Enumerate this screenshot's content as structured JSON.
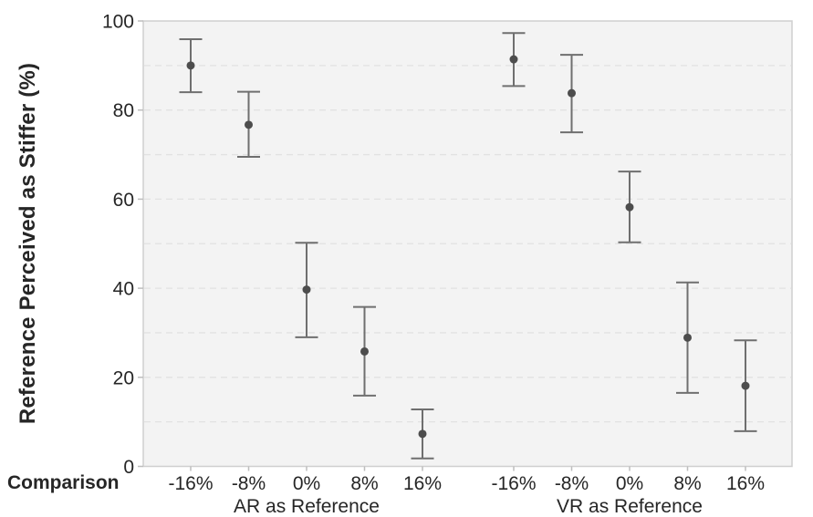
{
  "figure": {
    "colors": {
      "panel_background": "#f3f3f3",
      "panel_border": "#cfcfcf",
      "gridline": "#e2e2e2",
      "tick": "#bdbdbd",
      "error_bar": "#6f6f6f",
      "marker": "#4d4d4d",
      "text": "#262626"
    }
  },
  "chart_data": {
    "type": "scatter",
    "title": "",
    "ylabel": "Reference Perceived as Stiffer (%)",
    "xlabel": "Comparison",
    "ylim": [
      0,
      100
    ],
    "y_tick_labels": [
      0,
      20,
      40,
      60,
      80,
      100
    ],
    "gridline_step": 10,
    "grid": true,
    "legend_position": "none",
    "categories": [
      "-16%",
      "-8%",
      "0%",
      "8%",
      "16%"
    ],
    "series": [
      {
        "name": "AR as Reference",
        "means": [
          90.0,
          76.7,
          39.7,
          25.8,
          7.3
        ],
        "err_low": [
          84.0,
          69.5,
          29.0,
          15.9,
          1.8
        ],
        "err_high": [
          95.9,
          84.1,
          50.2,
          35.8,
          12.8
        ]
      },
      {
        "name": "VR as Reference",
        "means": [
          91.4,
          83.8,
          58.2,
          28.9,
          18.1
        ],
        "err_low": [
          85.4,
          75.0,
          50.3,
          16.5,
          7.9
        ],
        "err_high": [
          97.3,
          92.4,
          66.2,
          41.3,
          28.3
        ]
      }
    ]
  }
}
